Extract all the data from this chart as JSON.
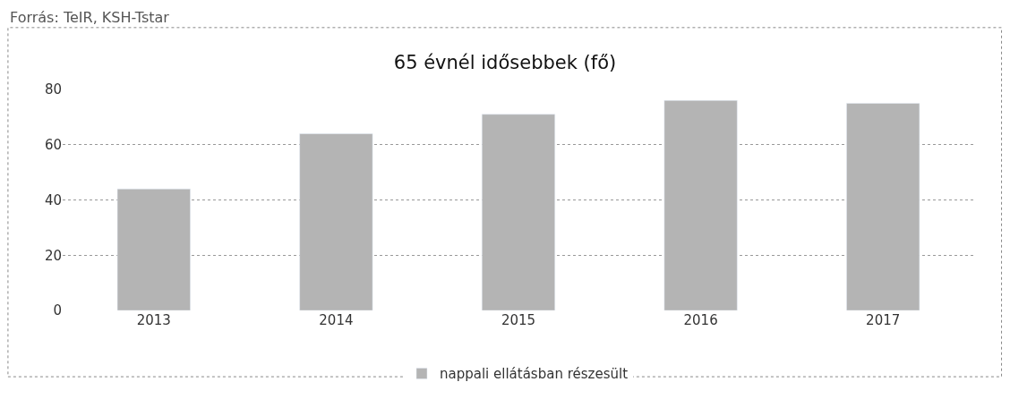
{
  "chart_data": {
    "type": "bar",
    "title": "65 évnél idősebbek (fő)",
    "categories": [
      "2013",
      "2014",
      "2015",
      "2016",
      "2017"
    ],
    "series": [
      {
        "name": "nappali ellátásban részesült",
        "color": "#b4b4b4",
        "values": [
          44,
          64,
          71,
          76,
          75
        ]
      }
    ],
    "ylim": [
      0,
      80
    ],
    "yticks": [
      0,
      20,
      40,
      60,
      80
    ],
    "grid": "y",
    "legend": "bottom",
    "annotations": [
      "Forrás: TeIR, KSH-Tstar"
    ]
  }
}
